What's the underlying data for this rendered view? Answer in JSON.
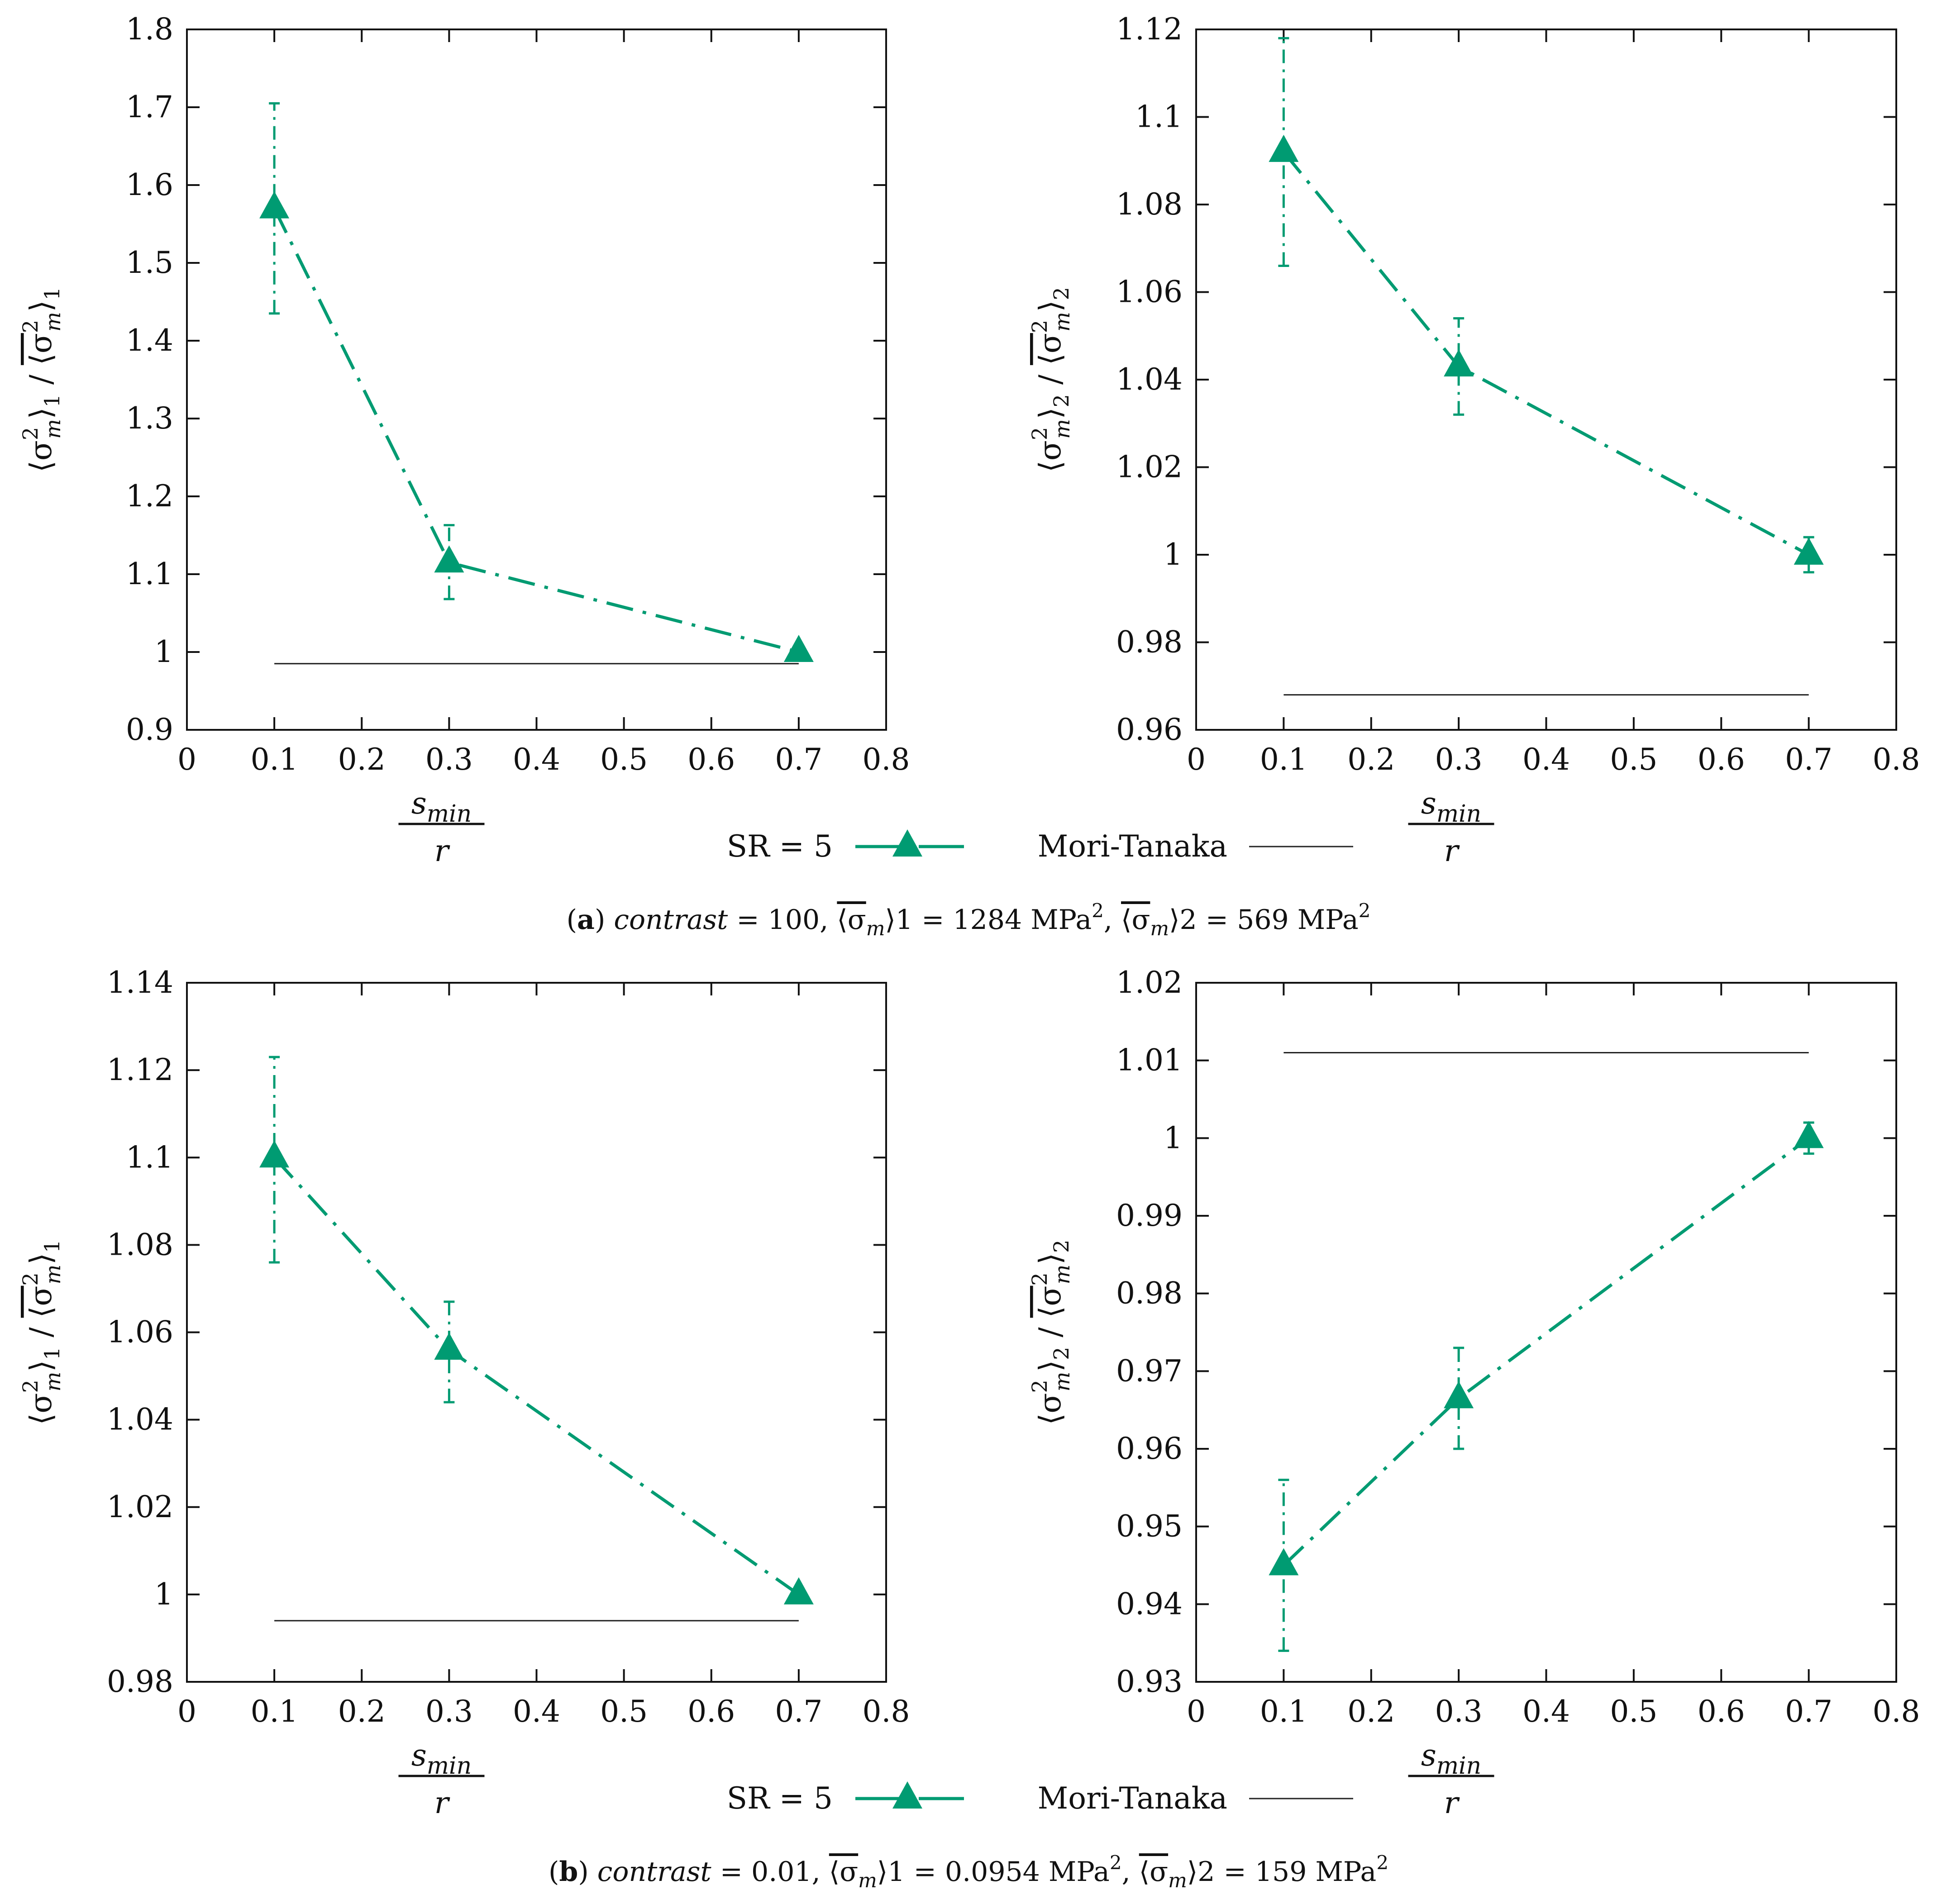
{
  "legend": {
    "series_label": "SR = 5",
    "reference_label": "Mori-Tanaka"
  },
  "colors": {
    "series": "#009b72",
    "reference": "#222222",
    "axis": "#111111"
  },
  "captions": [
    {
      "letter": "a",
      "prefix": "contrast",
      "rest": " = 100, ",
      "v1_lhs": "⟨σ",
      "v1_sub": "m",
      "v1_idx": "⟩1",
      "v1_rhs": " = 1284 MPa",
      "v2_lhs": "⟨σ",
      "v2_sub": "m",
      "v2_idx": "⟩2",
      "v2_rhs": " = 569 MPa",
      "sup": "2"
    },
    {
      "letter": "b",
      "prefix": "contrast",
      "rest": " = 0.01, ",
      "v1_lhs": "⟨σ",
      "v1_sub": "m",
      "v1_idx": "⟩1",
      "v1_rhs": " = 0.0954 MPa",
      "v2_lhs": "⟨σ",
      "v2_sub": "m",
      "v2_idx": "⟩2",
      "v2_rhs": " = 159 MPa",
      "sup": "2"
    }
  ],
  "chart_data": [
    {
      "type": "line",
      "panel": "a-left",
      "ylabel": "⟨σm²⟩1 / ⟨σm²⟩1 (mean)",
      "ylabel_parts": {
        "a": "⟨σ",
        "b": "⟩",
        "idx": "1",
        "slash": " / ",
        "sup": "2",
        "m": "m"
      },
      "xlabel_num": "smin",
      "xlabel_den": "r",
      "xlim": [
        0,
        0.8
      ],
      "ylim": [
        0.9,
        1.8
      ],
      "xticks": [
        0,
        0.1,
        0.2,
        0.3,
        0.4,
        0.5,
        0.6,
        0.7,
        0.8
      ],
      "xtick_labels": [
        "0",
        "0.1",
        "0.2",
        "0.3",
        "0.4",
        "0.5",
        "0.6",
        "0.7",
        "0.8"
      ],
      "yticks": [
        0.9,
        1.0,
        1.1,
        1.2,
        1.3,
        1.4,
        1.5,
        1.6,
        1.7,
        1.8
      ],
      "ytick_labels": [
        "0.9",
        "1",
        "1.1",
        "1.2",
        "1.3",
        "1.4",
        "1.5",
        "1.6",
        "1.7",
        "1.8"
      ],
      "series": [
        {
          "name": "SR = 5",
          "x": [
            0.1,
            0.3,
            0.7
          ],
          "y": [
            1.57,
            1.115,
            1.0
          ],
          "err_low": [
            1.435,
            1.068,
            0.995
          ],
          "err_high": [
            1.705,
            1.163,
            1.005
          ]
        }
      ],
      "reference": {
        "name": "Mori-Tanaka",
        "x": [
          0.1,
          0.7
        ],
        "y": [
          0.985,
          0.985
        ]
      }
    },
    {
      "type": "line",
      "panel": "a-right",
      "ylabel": "⟨σm²⟩2 / ⟨σm²⟩2 (mean)",
      "ylabel_parts": {
        "a": "⟨σ",
        "b": "⟩",
        "idx": "2",
        "slash": " / ",
        "sup": "2",
        "m": "m"
      },
      "xlabel_num": "smin",
      "xlabel_den": "r",
      "xlim": [
        0,
        0.8
      ],
      "ylim": [
        0.96,
        1.12
      ],
      "xticks": [
        0,
        0.1,
        0.2,
        0.3,
        0.4,
        0.5,
        0.6,
        0.7,
        0.8
      ],
      "xtick_labels": [
        "0",
        "0.1",
        "0.2",
        "0.3",
        "0.4",
        "0.5",
        "0.6",
        "0.7",
        "0.8"
      ],
      "yticks": [
        0.96,
        0.98,
        1.0,
        1.02,
        1.04,
        1.06,
        1.08,
        1.1,
        1.12
      ],
      "ytick_labels": [
        "0.96",
        "0.98",
        "1",
        "1.02",
        "1.04",
        "1.06",
        "1.08",
        "1.1",
        "1.12"
      ],
      "series": [
        {
          "name": "SR = 5",
          "x": [
            0.1,
            0.3,
            0.7
          ],
          "y": [
            1.092,
            1.043,
            1.0
          ],
          "err_low": [
            1.066,
            1.032,
            0.996
          ],
          "err_high": [
            1.118,
            1.054,
            1.004
          ]
        }
      ],
      "reference": {
        "name": "Mori-Tanaka",
        "x": [
          0.1,
          0.7
        ],
        "y": [
          0.968,
          0.968
        ]
      }
    },
    {
      "type": "line",
      "panel": "b-left",
      "ylabel": "⟨σm²⟩1 / ⟨σm²⟩1 (mean)",
      "ylabel_parts": {
        "a": "⟨σ",
        "b": "⟩",
        "idx": "1",
        "slash": " / ",
        "sup": "2",
        "m": "m"
      },
      "xlabel_num": "smin",
      "xlabel_den": "r",
      "xlim": [
        0,
        0.8
      ],
      "ylim": [
        0.98,
        1.14
      ],
      "xticks": [
        0,
        0.1,
        0.2,
        0.3,
        0.4,
        0.5,
        0.6,
        0.7,
        0.8
      ],
      "xtick_labels": [
        "0",
        "0.1",
        "0.2",
        "0.3",
        "0.4",
        "0.5",
        "0.6",
        "0.7",
        "0.8"
      ],
      "yticks": [
        0.98,
        1.0,
        1.02,
        1.04,
        1.06,
        1.08,
        1.1,
        1.12,
        1.14
      ],
      "ytick_labels": [
        "0.98",
        "1",
        "1.02",
        "1.04",
        "1.06",
        "1.08",
        "1.1",
        "1.12",
        "1.14"
      ],
      "series": [
        {
          "name": "SR = 5",
          "x": [
            0.1,
            0.3,
            0.7
          ],
          "y": [
            1.1,
            1.056,
            1.0
          ],
          "err_low": [
            1.076,
            1.044,
            0.999
          ],
          "err_high": [
            1.123,
            1.067,
            1.001
          ]
        }
      ],
      "reference": {
        "name": "Mori-Tanaka",
        "x": [
          0.1,
          0.7
        ],
        "y": [
          0.994,
          0.994
        ]
      }
    },
    {
      "type": "line",
      "panel": "b-right",
      "ylabel": "⟨σm²⟩2 / ⟨σm²⟩2 (mean)",
      "ylabel_parts": {
        "a": "⟨σ",
        "b": "⟩",
        "idx": "2",
        "slash": " / ",
        "sup": "2",
        "m": "m"
      },
      "xlabel_num": "smin",
      "xlabel_den": "r",
      "xlim": [
        0,
        0.8
      ],
      "ylim": [
        0.93,
        1.02
      ],
      "xticks": [
        0,
        0.1,
        0.2,
        0.3,
        0.4,
        0.5,
        0.6,
        0.7,
        0.8
      ],
      "xtick_labels": [
        "0",
        "0.1",
        "0.2",
        "0.3",
        "0.4",
        "0.5",
        "0.6",
        "0.7",
        "0.8"
      ],
      "yticks": [
        0.93,
        0.94,
        0.95,
        0.96,
        0.97,
        0.98,
        0.99,
        1.0,
        1.01,
        1.02
      ],
      "ytick_labels": [
        "0.93",
        "0.94",
        "0.95",
        "0.96",
        "0.97",
        "0.98",
        "0.99",
        "1",
        "1.01",
        "1.02"
      ],
      "series": [
        {
          "name": "SR = 5",
          "x": [
            0.1,
            0.3,
            0.7
          ],
          "y": [
            0.945,
            0.9665,
            1.0
          ],
          "err_low": [
            0.934,
            0.96,
            0.998
          ],
          "err_high": [
            0.956,
            0.973,
            1.002
          ]
        }
      ],
      "reference": {
        "name": "Mori-Tanaka",
        "x": [
          0.1,
          0.7
        ],
        "y": [
          1.011,
          1.011
        ]
      }
    }
  ]
}
